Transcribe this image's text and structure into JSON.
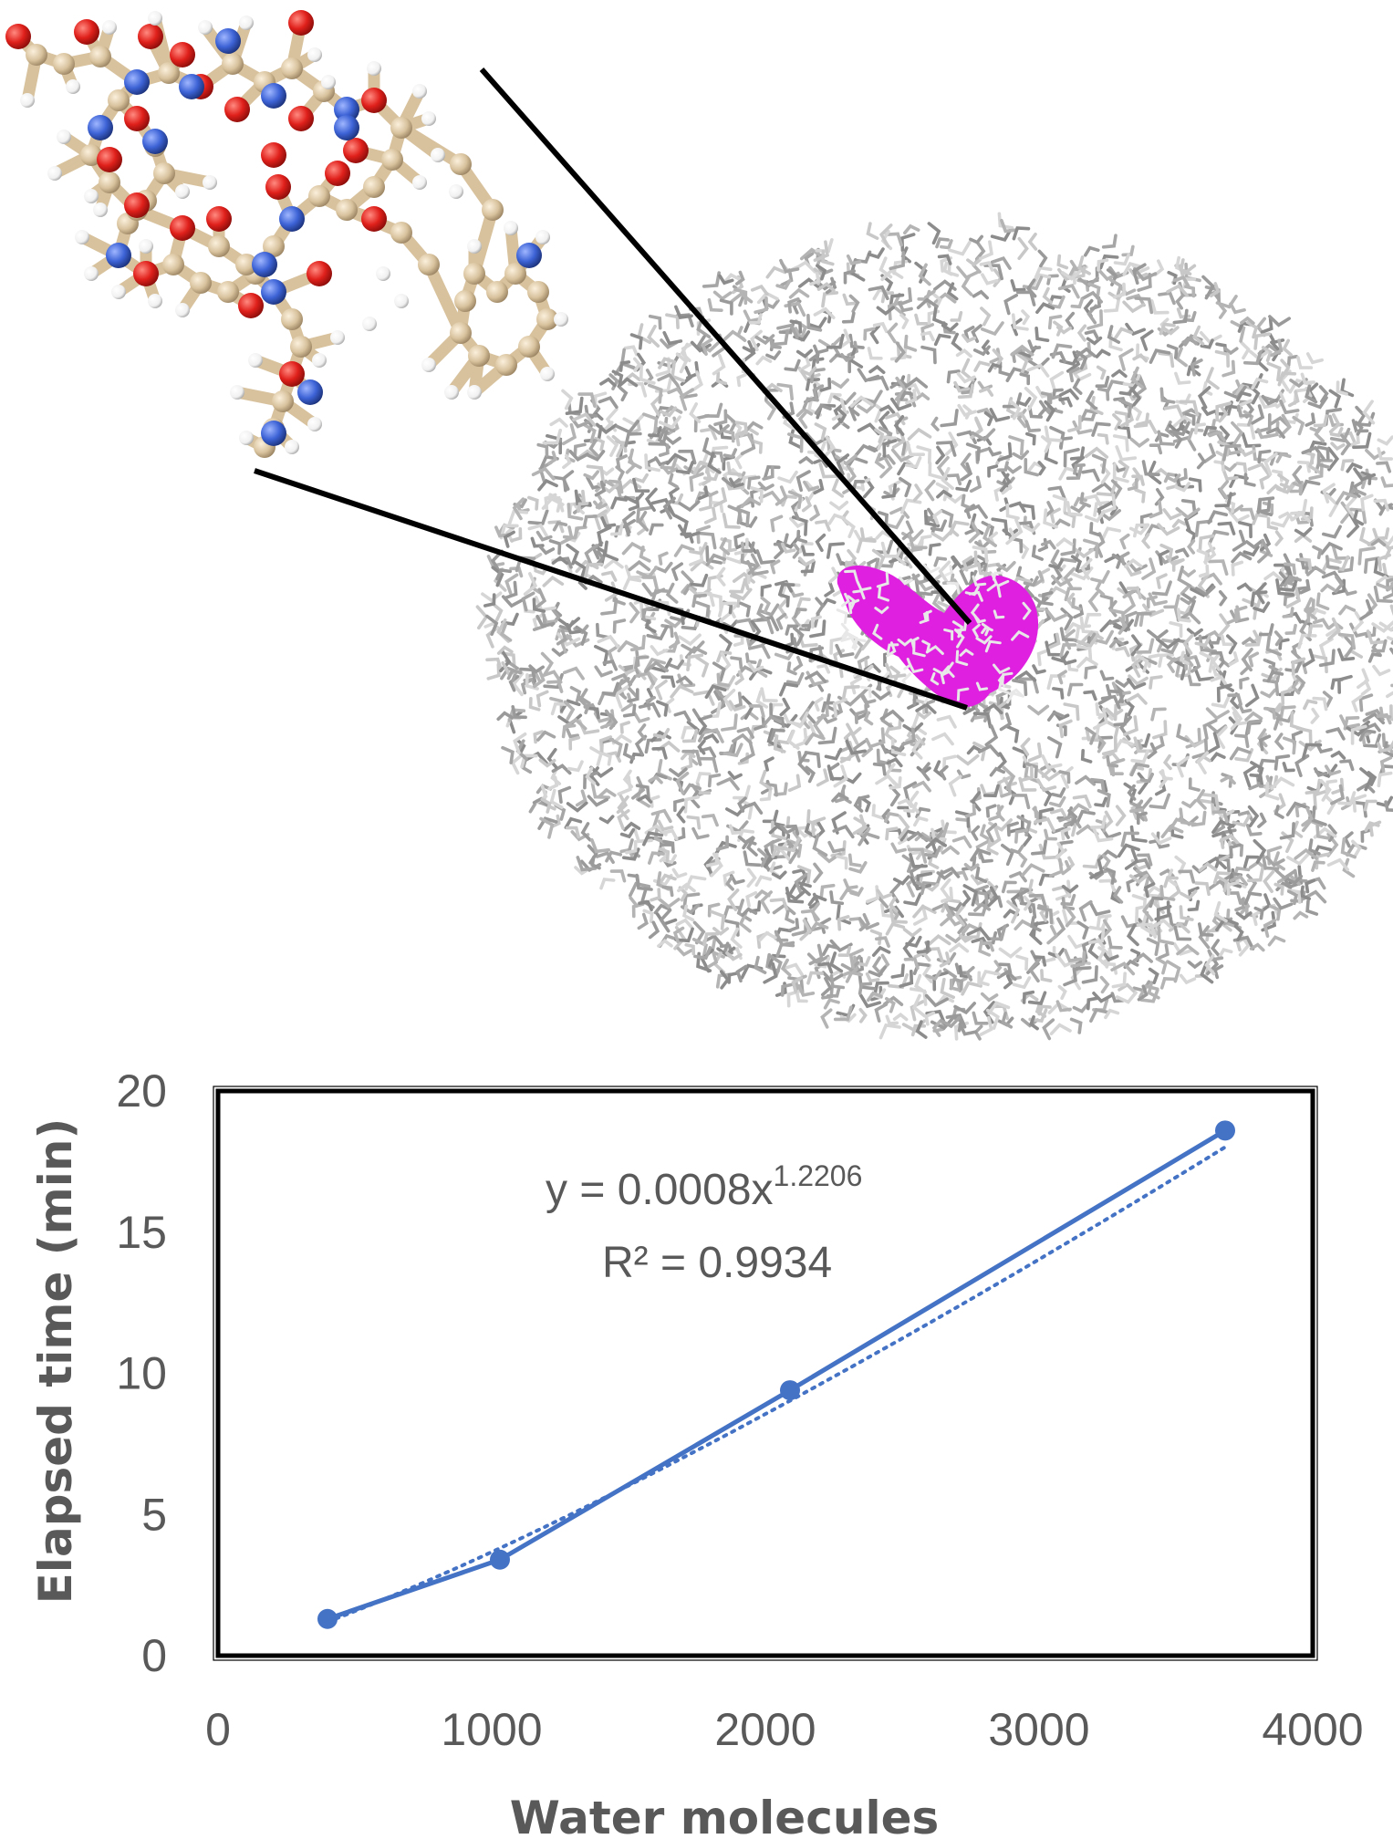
{
  "illustration": {
    "peptide_icon": "peptide-ball-and-stick-model",
    "water_icon": "water-sphere-model",
    "colors": {
      "carbon": "#d8c29d",
      "oxygen": "#e0201b",
      "nitrogen": "#3d63d6",
      "hydrogen": "#ffffff",
      "water": "#b0b0b0",
      "peptide_surface": "#e020e0"
    }
  },
  "chart_data": {
    "type": "line",
    "x": [
      400,
      1030,
      2090,
      3680
    ],
    "series": [
      {
        "values": [
          1.3,
          3.4,
          9.4,
          18.6
        ],
        "color": "#4472c4",
        "marker": "circle"
      }
    ],
    "trendline": {
      "kind": "power",
      "coefficient": 0.0008,
      "exponent": 1.2206,
      "r_squared": 0.9934,
      "color": "#4472c4",
      "style": "dotted"
    },
    "equation": {
      "prefix": "y = 0.0008x",
      "exponent": "1.2206"
    },
    "r_squared_text": "R² = 0.9934",
    "xlabel": "Water molecules",
    "ylabel": "Elapsed time (min)",
    "xlim": [
      0,
      4000
    ],
    "ylim": [
      0,
      20
    ],
    "xticks": [
      0,
      1000,
      2000,
      3000,
      4000
    ],
    "yticks": [
      0,
      5,
      10,
      15,
      20
    ],
    "grid": false
  }
}
